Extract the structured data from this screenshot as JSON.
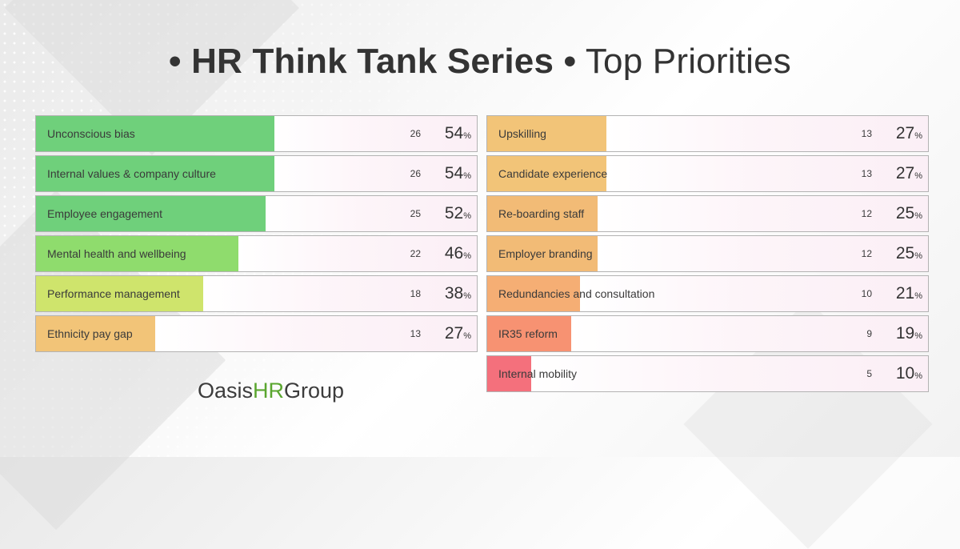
{
  "title": {
    "bullet_1": "•",
    "series": "HR Think Tank Series",
    "bullet_2": "•",
    "subtitle": "Top Priorities"
  },
  "logo": {
    "part1": "Oasis",
    "part2": "HR",
    "part3": "Group"
  },
  "colors": {
    "green": "#6fd07b",
    "light_green": "#c6e46b",
    "orange": "#f2c478",
    "salmon": "#f79272",
    "red": "#f4707c"
  },
  "chart_data": {
    "type": "bar",
    "orientation": "horizontal",
    "value_max": 100,
    "percent_symbol": "%",
    "left": [
      {
        "label": "Unconscious bias",
        "count": 26,
        "percent": 54,
        "color": "#6fd07b"
      },
      {
        "label": "Internal values & company culture",
        "count": 26,
        "percent": 54,
        "color": "#6fd07b"
      },
      {
        "label": "Employee engagement",
        "count": 25,
        "percent": 52,
        "color": "#6fd07b"
      },
      {
        "label": "Mental health and wellbeing",
        "count": 22,
        "percent": 46,
        "color": "#8fdc6d"
      },
      {
        "label": "Performance management",
        "count": 18,
        "percent": 38,
        "color": "#cfe46c"
      },
      {
        "label": "Ethnicity pay gap",
        "count": 13,
        "percent": 27,
        "color": "#f2c478"
      }
    ],
    "right": [
      {
        "label": "Upskilling",
        "count": 13,
        "percent": 27,
        "color": "#f2c478"
      },
      {
        "label": "Candidate experience",
        "count": 13,
        "percent": 27,
        "color": "#f2c478"
      },
      {
        "label": "Re-boarding staff",
        "count": 12,
        "percent": 25,
        "color": "#f2bb76"
      },
      {
        "label": "Employer branding",
        "count": 12,
        "percent": 25,
        "color": "#f2bb76"
      },
      {
        "label": "Redundancies and consultation",
        "count": 10,
        "percent": 21,
        "color": "#f5ae74"
      },
      {
        "label": "IR35 reform",
        "count": 9,
        "percent": 19,
        "color": "#f79272"
      },
      {
        "label": "Internal mobility",
        "count": 5,
        "percent": 10,
        "color": "#f4707c"
      }
    ]
  }
}
